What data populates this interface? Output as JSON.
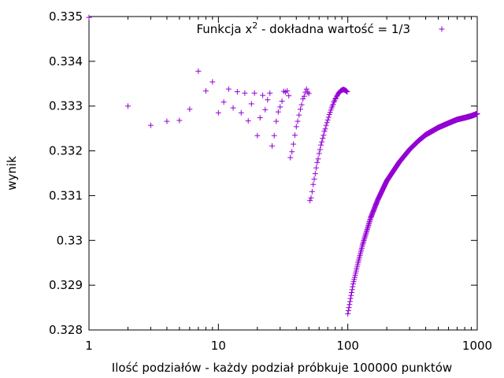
{
  "chart_data": {
    "type": "scatter",
    "title": "",
    "xlabel": "Ilość podziałów - każdy podział próbkuje 100000 punktów",
    "ylabel": "wynik",
    "x_scale": "log",
    "xlim": [
      1,
      1000
    ],
    "ylim": [
      0.328,
      0.335
    ],
    "x_ticks": [
      1,
      10,
      100,
      1000
    ],
    "x_tick_labels": [
      "1",
      "10",
      "100",
      "1000"
    ],
    "y_ticks": [
      0.328,
      0.329,
      0.33,
      0.331,
      0.332,
      0.333,
      0.334,
      0.335
    ],
    "y_tick_labels": [
      "0.328",
      "0.329",
      "0.33",
      "0.331",
      "0.332",
      "0.333",
      "0.334",
      "0.335"
    ],
    "grid": false,
    "legend_position": "top-right",
    "marker": "+",
    "color": "#9400d3",
    "series": [
      {
        "name": "Funkcja x² - dokładna wartość = 1/3",
        "legend_base": "Funkcja x",
        "legend_sup": "2",
        "legend_rest": " - dokładna wartość = 1/3",
        "points": [
          [
            1,
            0.33498
          ],
          [
            2,
            0.333
          ],
          [
            3,
            0.33257
          ],
          [
            4,
            0.33266
          ],
          [
            5,
            0.33268
          ],
          [
            6,
            0.33293
          ],
          [
            7,
            0.33378
          ],
          [
            8,
            0.33334
          ],
          [
            9,
            0.33354
          ],
          [
            10,
            0.33285
          ],
          [
            11,
            0.33309
          ],
          [
            12,
            0.33338
          ],
          [
            13,
            0.33296
          ],
          [
            14,
            0.33332
          ],
          [
            15,
            0.33285
          ],
          [
            16,
            0.33329
          ],
          [
            17,
            0.33267
          ],
          [
            18,
            0.33305
          ],
          [
            19,
            0.33329
          ],
          [
            20,
            0.33234
          ],
          [
            21,
            0.33274
          ],
          [
            22,
            0.33324
          ],
          [
            23,
            0.33292
          ],
          [
            24,
            0.33314
          ],
          [
            25,
            0.33329
          ],
          [
            26,
            0.33211
          ],
          [
            27,
            0.33234
          ],
          [
            28,
            0.33266
          ],
          [
            29,
            0.33287
          ],
          [
            30,
            0.33298
          ],
          [
            31,
            0.33311
          ],
          [
            32,
            0.33333
          ],
          [
            33,
            0.33331
          ],
          [
            34,
            0.33334
          ],
          [
            35,
            0.33323
          ],
          [
            36,
            0.33185
          ],
          [
            37,
            0.33198
          ],
          [
            38,
            0.33215
          ],
          [
            39,
            0.33235
          ],
          [
            40,
            0.33254
          ],
          [
            41,
            0.33266
          ],
          [
            42,
            0.3328
          ],
          [
            43,
            0.33293
          ],
          [
            44,
            0.33303
          ],
          [
            45,
            0.33316
          ],
          [
            46,
            0.33322
          ],
          [
            47,
            0.33331
          ],
          [
            48,
            0.33338
          ],
          [
            49,
            0.33331
          ],
          [
            50,
            0.33328
          ],
          [
            51,
            0.33089
          ],
          [
            52,
            0.33095
          ],
          [
            53,
            0.33109
          ],
          [
            54,
            0.33125
          ],
          [
            55,
            0.33137
          ],
          [
            56,
            0.33149
          ],
          [
            57,
            0.33162
          ],
          [
            58,
            0.33174
          ],
          [
            59,
            0.33182
          ],
          [
            60,
            0.33194
          ],
          [
            61,
            0.33203
          ],
          [
            62,
            0.33213
          ],
          [
            63,
            0.3322
          ],
          [
            64,
            0.33228
          ],
          [
            65,
            0.33235
          ],
          [
            66,
            0.33244
          ],
          [
            67,
            0.33249
          ],
          [
            68,
            0.33257
          ],
          [
            69,
            0.33263
          ],
          [
            70,
            0.33269
          ],
          [
            71,
            0.33275
          ],
          [
            72,
            0.33281
          ],
          [
            73,
            0.33286
          ],
          [
            74,
            0.33291
          ],
          [
            75,
            0.33296
          ],
          [
            76,
            0.333
          ],
          [
            77,
            0.33304
          ],
          [
            78,
            0.33309
          ],
          [
            79,
            0.33312
          ],
          [
            80,
            0.33316
          ],
          [
            81,
            0.33318
          ],
          [
            82,
            0.33322
          ],
          [
            83,
            0.33324
          ],
          [
            84,
            0.33327
          ],
          [
            85,
            0.33329
          ],
          [
            86,
            0.33331
          ],
          [
            87,
            0.33332
          ],
          [
            88,
            0.33334
          ],
          [
            89,
            0.33335
          ],
          [
            90,
            0.33336
          ],
          [
            91,
            0.33336
          ],
          [
            92,
            0.33337
          ],
          [
            93,
            0.33337
          ],
          [
            94,
            0.33336
          ],
          [
            95,
            0.33336
          ],
          [
            96,
            0.33335
          ],
          [
            97,
            0.33334
          ],
          [
            98,
            0.33333
          ],
          [
            99,
            0.33332
          ]
        ],
        "curve": {
          "description": "dense continuous points for every integer x from 100 to 1000",
          "x_from": 100,
          "x_to": 1000,
          "anchors": [
            [
              100,
              0.32836
            ],
            [
              110,
              0.32903
            ],
            [
              120,
              0.3295
            ],
            [
              130,
              0.3299
            ],
            [
              150,
              0.3305
            ],
            [
              170,
              0.3309
            ],
            [
              200,
              0.33133
            ],
            [
              250,
              0.33175
            ],
            [
              300,
              0.33203
            ],
            [
              350,
              0.33222
            ],
            [
              400,
              0.33236
            ],
            [
              500,
              0.33252
            ],
            [
              600,
              0.33262
            ],
            [
              700,
              0.3327
            ],
            [
              800,
              0.33274
            ],
            [
              900,
              0.33278
            ],
            [
              1000,
              0.33283
            ]
          ]
        }
      }
    ]
  }
}
